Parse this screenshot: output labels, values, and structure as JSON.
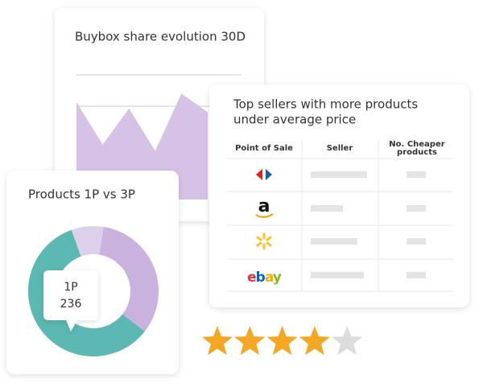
{
  "buybox": {
    "title": "Buybox share evolution 30D",
    "values": [
      78,
      44,
      73,
      39,
      85,
      70
    ],
    "ylim": [
      0,
      100
    ],
    "color": "#d5c2e6"
  },
  "top_sellers": {
    "title_lines": [
      "Top sellers with more products",
      "under average price"
    ],
    "columns": [
      "Point of Sale",
      "Seller",
      [
        "No. Cheaper",
        "products"
      ]
    ],
    "amazon_logo": "a",
    "ebay_logo": "ebay"
  },
  "products": {
    "title": "Products 1P vs 3P",
    "values": [
      59,
      8,
      33
    ],
    "colors": [
      "#5cb8b2",
      "#ddd0ea",
      "#c9b2de"
    ],
    "tooltip": {
      "label": "1P",
      "value": 236
    }
  },
  "rating": {
    "value": 4,
    "max": 5,
    "color": "#f5a623",
    "empty_color": "#dcdcdc"
  }
}
